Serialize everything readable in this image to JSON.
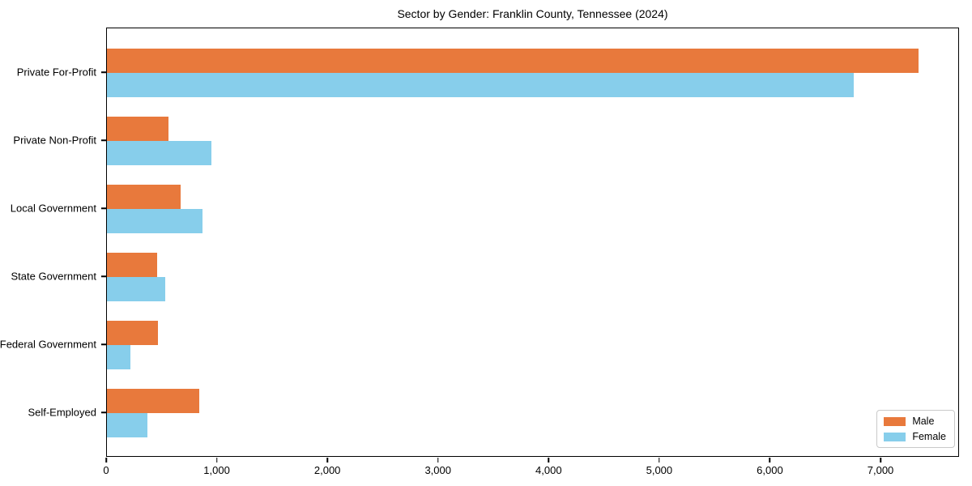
{
  "title": "Sector by Gender: Franklin County, Tennessee (2024)",
  "chart_data": {
    "type": "bar",
    "orientation": "horizontal",
    "title": "Sector by Gender: Franklin County, Tennessee (2024)",
    "categories": [
      "Private For-Profit",
      "Private Non-Profit",
      "Local Government",
      "State Government",
      "Federal Government",
      "Self-Employed"
    ],
    "series": [
      {
        "name": "Male",
        "color": "#e8793c",
        "values": [
          7350,
          557,
          667,
          455,
          460,
          833
        ]
      },
      {
        "name": "Female",
        "color": "#87ceeb",
        "values": [
          6765,
          948,
          867,
          528,
          211,
          367
        ]
      }
    ],
    "xlabel": "",
    "ylabel": "",
    "xlim": [
      0,
      7710
    ],
    "x_ticks": [
      0,
      1000,
      2000,
      3000,
      4000,
      5000,
      6000,
      7000
    ],
    "x_tick_labels": [
      "0",
      "1,000",
      "2,000",
      "3,000",
      "4,000",
      "5,000",
      "6,000",
      "7,000"
    ],
    "legend": {
      "position": "lower right"
    },
    "grid": false,
    "bar_group_order_top_to_bottom": [
      "Male",
      "Female"
    ]
  }
}
